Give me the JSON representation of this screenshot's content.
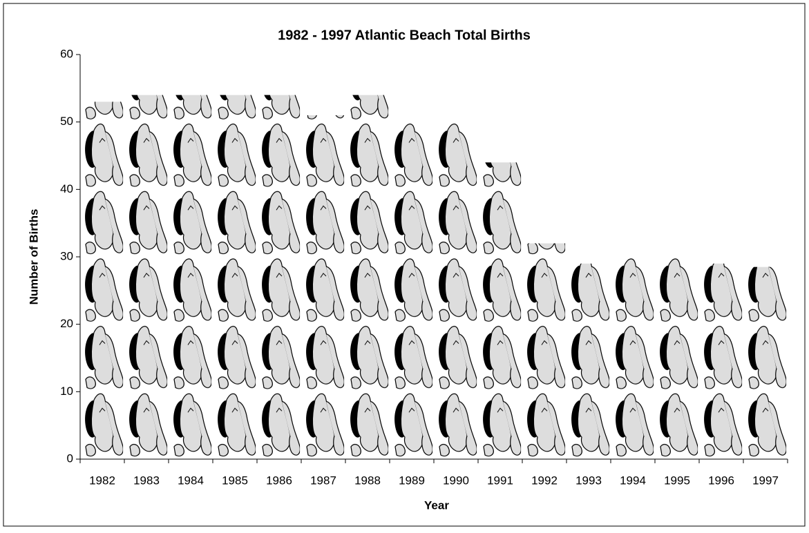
{
  "chart_data": {
    "type": "bar",
    "title": "1982 - 1997 Atlantic Beach Total Births",
    "x_label": "Year",
    "y_label": "Number of Births",
    "categories": [
      "1982",
      "1983",
      "1984",
      "1985",
      "1986",
      "1987",
      "1988",
      "1989",
      "1990",
      "1991",
      "1992",
      "1993",
      "1994",
      "1995",
      "1996",
      "1997"
    ],
    "values": [
      53,
      54,
      54,
      54,
      54,
      51,
      54,
      50,
      50,
      44,
      32,
      29,
      30,
      30,
      29,
      28.5
    ],
    "color": "#dddddd",
    "ylim": [
      0,
      60
    ],
    "yticks": [
      0,
      10,
      20,
      30,
      40,
      50,
      60
    ],
    "grid": false
  }
}
